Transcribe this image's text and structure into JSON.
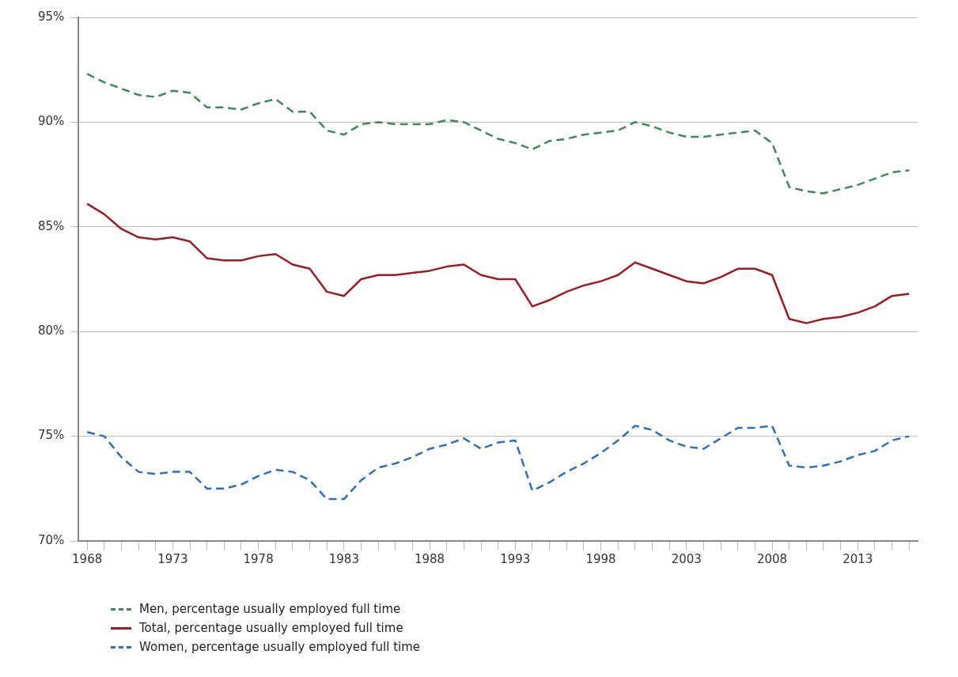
{
  "chart_data": {
    "type": "line",
    "x": [
      1968,
      1969,
      1970,
      1971,
      1972,
      1973,
      1974,
      1975,
      1976,
      1977,
      1978,
      1979,
      1980,
      1981,
      1982,
      1983,
      1984,
      1985,
      1986,
      1987,
      1988,
      1989,
      1990,
      1991,
      1992,
      1993,
      1994,
      1995,
      1996,
      1997,
      1998,
      1999,
      2000,
      2001,
      2002,
      2003,
      2004,
      2005,
      2006,
      2007,
      2008,
      2009,
      2010,
      2011,
      2012,
      2013,
      2014,
      2015,
      2016
    ],
    "series": [
      {
        "name": "Men, percentage usually employed full time",
        "color": "#3a8a5a",
        "line_style": "dashed",
        "values": [
          92.3,
          91.9,
          91.6,
          91.3,
          91.2,
          91.5,
          91.4,
          90.7,
          90.7,
          90.6,
          90.9,
          91.1,
          90.5,
          90.5,
          89.6,
          89.4,
          89.9,
          90.0,
          89.9,
          89.9,
          89.9,
          90.1,
          90.0,
          89.6,
          89.2,
          89.0,
          88.7,
          89.1,
          89.2,
          89.4,
          89.5,
          89.6,
          90.0,
          89.8,
          89.5,
          89.3,
          89.3,
          89.4,
          89.5,
          89.6,
          89.0,
          86.9,
          86.7,
          86.6,
          86.8,
          87.0,
          87.3,
          87.6,
          87.7
        ]
      },
      {
        "name": "Total, percentage usually employed full time",
        "color": "#9b1c22",
        "line_style": "solid",
        "values": [
          86.1,
          85.6,
          84.9,
          84.5,
          84.4,
          84.5,
          84.3,
          83.5,
          83.4,
          83.4,
          83.6,
          83.7,
          83.2,
          83.0,
          81.9,
          81.7,
          82.5,
          82.7,
          82.7,
          82.8,
          82.9,
          83.1,
          83.2,
          82.7,
          82.5,
          82.5,
          81.2,
          81.5,
          81.9,
          82.2,
          82.4,
          82.7,
          83.3,
          83.0,
          82.7,
          82.4,
          82.3,
          82.6,
          83.0,
          83.0,
          82.7,
          80.6,
          80.4,
          80.6,
          80.7,
          80.9,
          81.2,
          81.7,
          81.8
        ]
      },
      {
        "name": "Women, percentage usually employed full time",
        "color": "#2a70c0",
        "line_style": "dashed",
        "values": [
          75.2,
          75.0,
          74.0,
          73.3,
          73.2,
          73.3,
          73.3,
          72.5,
          72.5,
          72.7,
          73.1,
          73.4,
          73.3,
          72.9,
          72.0,
          72.0,
          72.9,
          73.5,
          73.7,
          74.0,
          74.4,
          74.6,
          74.9,
          74.4,
          74.7,
          74.8,
          72.4,
          72.8,
          73.3,
          73.7,
          74.2,
          74.8,
          75.5,
          75.3,
          74.8,
          74.5,
          74.4,
          74.9,
          75.4,
          75.4,
          75.5,
          73.6,
          73.5,
          73.6,
          73.8,
          74.1,
          74.3,
          74.8,
          75.0
        ]
      }
    ],
    "xlim": [
      1967.5,
      2016.5
    ],
    "xticks": [
      1968,
      {
        "value": 1969,
        "label": null
      },
      {
        "value": 1970,
        "label": null
      },
      {
        "value": 1971,
        "label": null
      },
      {
        "value": 1972,
        "label": null
      },
      1973,
      {
        "value": 1974,
        "label": null
      },
      {
        "value": 1975,
        "label": null
      },
      {
        "value": 1976,
        "label": null
      },
      {
        "value": 1977,
        "label": null
      },
      1978,
      {
        "value": 1979,
        "label": null
      },
      {
        "value": 1980,
        "label": null
      },
      {
        "value": 1981,
        "label": null
      },
      {
        "value": 1982,
        "label": null
      },
      1983,
      {
        "value": 1984,
        "label": null
      },
      {
        "value": 1985,
        "label": null
      },
      {
        "value": 1986,
        "label": null
      },
      {
        "value": 1987,
        "label": null
      },
      1988,
      {
        "value": 1989,
        "label": null
      },
      {
        "value": 1990,
        "label": null
      },
      {
        "value": 1991,
        "label": null
      },
      {
        "value": 1992,
        "label": null
      },
      1993,
      {
        "value": 1994,
        "label": null
      },
      {
        "value": 1995,
        "label": null
      },
      {
        "value": 1996,
        "label": null
      },
      {
        "value": 1997,
        "label": null
      },
      1998,
      {
        "value": 1999,
        "label": null
      },
      {
        "value": 2000,
        "label": null
      },
      {
        "value": 2001,
        "label": null
      },
      {
        "value": 2002,
        "label": null
      },
      2003,
      {
        "value": 2004,
        "label": null
      },
      {
        "value": 2005,
        "label": null
      },
      {
        "value": 2006,
        "label": null
      },
      {
        "value": 2007,
        "label": null
      },
      2008,
      {
        "value": 2009,
        "label": null
      },
      {
        "value": 2010,
        "label": null
      },
      {
        "value": 2011,
        "label": null
      },
      {
        "value": 2012,
        "label": null
      },
      2013,
      {
        "value": 2014,
        "label": null
      },
      {
        "value": 2015,
        "label": null
      },
      {
        "value": 2016,
        "label": null
      }
    ],
    "ylim": [
      70,
      95
    ],
    "yticks": [
      {
        "value": 70,
        "label": "70%"
      },
      {
        "value": 75,
        "label": "75%"
      },
      {
        "value": 80,
        "label": "80%"
      },
      {
        "value": 85,
        "label": "85%"
      },
      {
        "value": 90,
        "label": "90%"
      },
      {
        "value": 95,
        "label": "95%"
      }
    ],
    "grid": "y",
    "legend": "bottom left",
    "marker": "none"
  }
}
